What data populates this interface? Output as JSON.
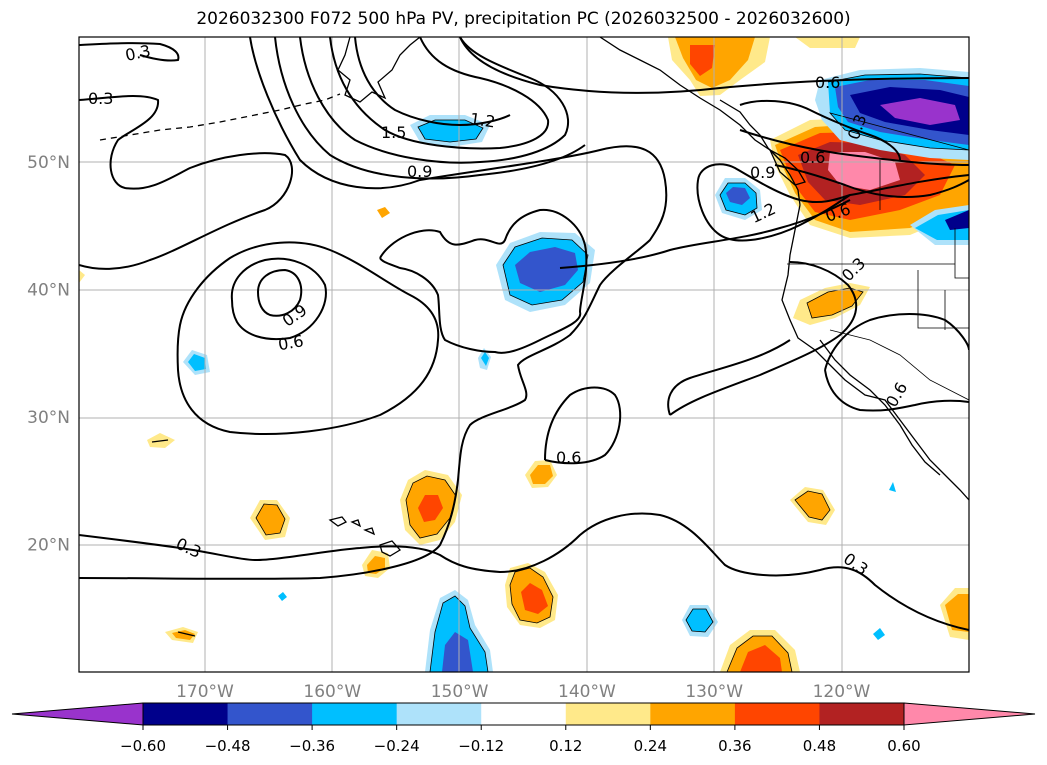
{
  "title": "2026032300 F072 500 hPa PV, precipitation PC (2026032500 - 2026032600)",
  "map": {
    "lat_labels": [
      {
        "text": "50°N",
        "lat": 50
      },
      {
        "text": "40°N",
        "lat": 40
      },
      {
        "text": "30°N",
        "lat": 30
      },
      {
        "text": "20°N",
        "lat": 20
      }
    ],
    "lon_labels": [
      {
        "text": "170°W",
        "lon": -170
      },
      {
        "text": "160°W",
        "lon": -160
      },
      {
        "text": "150°W",
        "lon": -150
      },
      {
        "text": "140°W",
        "lon": -140
      },
      {
        "text": "130°W",
        "lon": -130
      },
      {
        "text": "120°W",
        "lon": -120
      }
    ],
    "contour_labels": [
      "0.3",
      "0.3",
      "0.3",
      "0.3",
      "0.3",
      "0.6",
      "0.6",
      "0.6",
      "0.6",
      "0.6",
      "0.9",
      "0.9",
      "0.9",
      "1.2",
      "1.2",
      "1.5",
      "0.3",
      "0.6"
    ],
    "grid": true
  },
  "colorbar": {
    "ticks": [
      "−0.60",
      "−0.48",
      "−0.36",
      "−0.24",
      "−0.12",
      "0.12",
      "0.24",
      "0.36",
      "0.48",
      "0.60"
    ],
    "colors": [
      "#9933cc",
      "#00008b",
      "#3355cc",
      "#00bfff",
      "#aee2fa",
      "#ffffff",
      "#ffe98a",
      "#ffa500",
      "#ff4500",
      "#b22222",
      "#ff88aa",
      "#ff88aa"
    ]
  }
}
